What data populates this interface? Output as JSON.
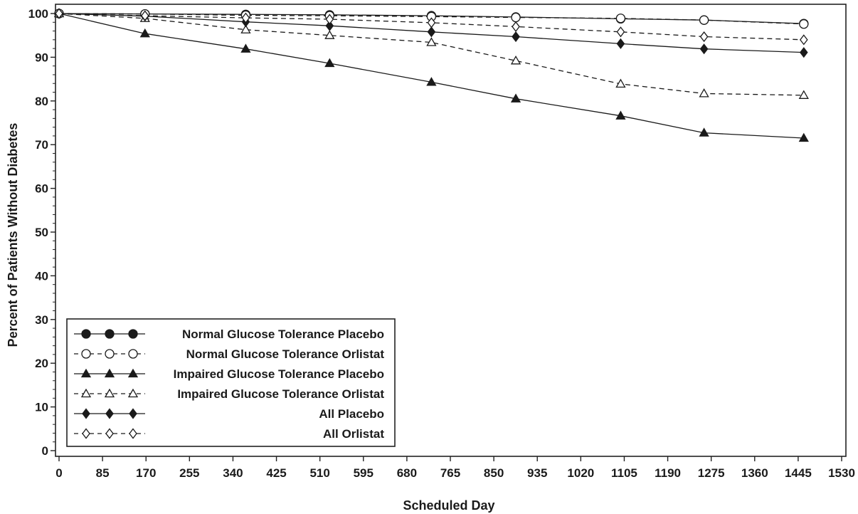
{
  "chart_data": {
    "type": "line",
    "title": "",
    "xlabel": "Scheduled Day",
    "ylabel": "Percent of Patients Without Diabetes",
    "xlim": [
      0,
      1530
    ],
    "ylim": [
      0,
      100
    ],
    "x_ticks": [
      0,
      85,
      170,
      255,
      340,
      425,
      510,
      595,
      680,
      765,
      850,
      935,
      1020,
      1105,
      1190,
      1275,
      1360,
      1445,
      1530
    ],
    "y_ticks": [
      0,
      10,
      20,
      30,
      40,
      50,
      60,
      70,
      80,
      90,
      100
    ],
    "x_tick_labels": [
      "0",
      "85",
      "170",
      "255",
      "340",
      "425",
      "510",
      "595",
      "680",
      "765",
      "850",
      "935",
      "1020",
      "1105",
      "1190",
      "1275",
      "1360",
      "1445",
      "1530"
    ],
    "y_tick_labels": [
      "0",
      "10",
      "20",
      "30",
      "40",
      "50",
      "60",
      "70",
      "80",
      "90",
      "100"
    ],
    "grid": false,
    "legend_position": "bottom-left",
    "series": [
      {
        "name": "Normal Glucose Tolerance Placebo",
        "marker": "circle-filled",
        "dash": "solid",
        "x": [
          0,
          168,
          365,
          529,
          728,
          893,
          1098,
          1261,
          1456
        ],
        "y": [
          100,
          99.9,
          99.8,
          99.7,
          99.5,
          99.2,
          98.8,
          98.5,
          97.7
        ]
      },
      {
        "name": "Normal Glucose Tolerance Orlistat",
        "marker": "circle-open",
        "dash": "dashed",
        "x": [
          0,
          168,
          365,
          529,
          728,
          893,
          1098,
          1261,
          1456
        ],
        "y": [
          100,
          99.9,
          99.6,
          99.5,
          99.3,
          99.1,
          98.9,
          98.5,
          97.6
        ]
      },
      {
        "name": "Impaired Glucose Tolerance Placebo",
        "marker": "triangle-filled",
        "dash": "solid",
        "x": [
          0,
          168,
          365,
          529,
          728,
          893,
          1098,
          1261,
          1456
        ],
        "y": [
          100,
          95.4,
          91.9,
          88.6,
          84.3,
          80.5,
          76.6,
          72.7,
          71.5
        ]
      },
      {
        "name": "Impaired Glucose Tolerance Orlistat",
        "marker": "triangle-open",
        "dash": "dashed",
        "x": [
          0,
          168,
          365,
          529,
          728,
          893,
          1098,
          1261,
          1456
        ],
        "y": [
          100,
          98.9,
          96.3,
          95.0,
          93.4,
          89.2,
          83.9,
          81.7,
          81.3
        ]
      },
      {
        "name": "All Placebo",
        "marker": "diamond-filled",
        "dash": "solid",
        "x": [
          0,
          168,
          365,
          529,
          728,
          893,
          1098,
          1261,
          1456
        ],
        "y": [
          100,
          99.4,
          98.1,
          97.2,
          95.8,
          94.7,
          93.1,
          91.9,
          91.1
        ]
      },
      {
        "name": "All Orlistat",
        "marker": "diamond-open",
        "dash": "dashed",
        "x": [
          0,
          168,
          365,
          529,
          728,
          893,
          1098,
          1261,
          1456
        ],
        "y": [
          100,
          99.5,
          99.0,
          98.7,
          97.9,
          97.0,
          95.8,
          94.7,
          94.0
        ]
      }
    ]
  }
}
